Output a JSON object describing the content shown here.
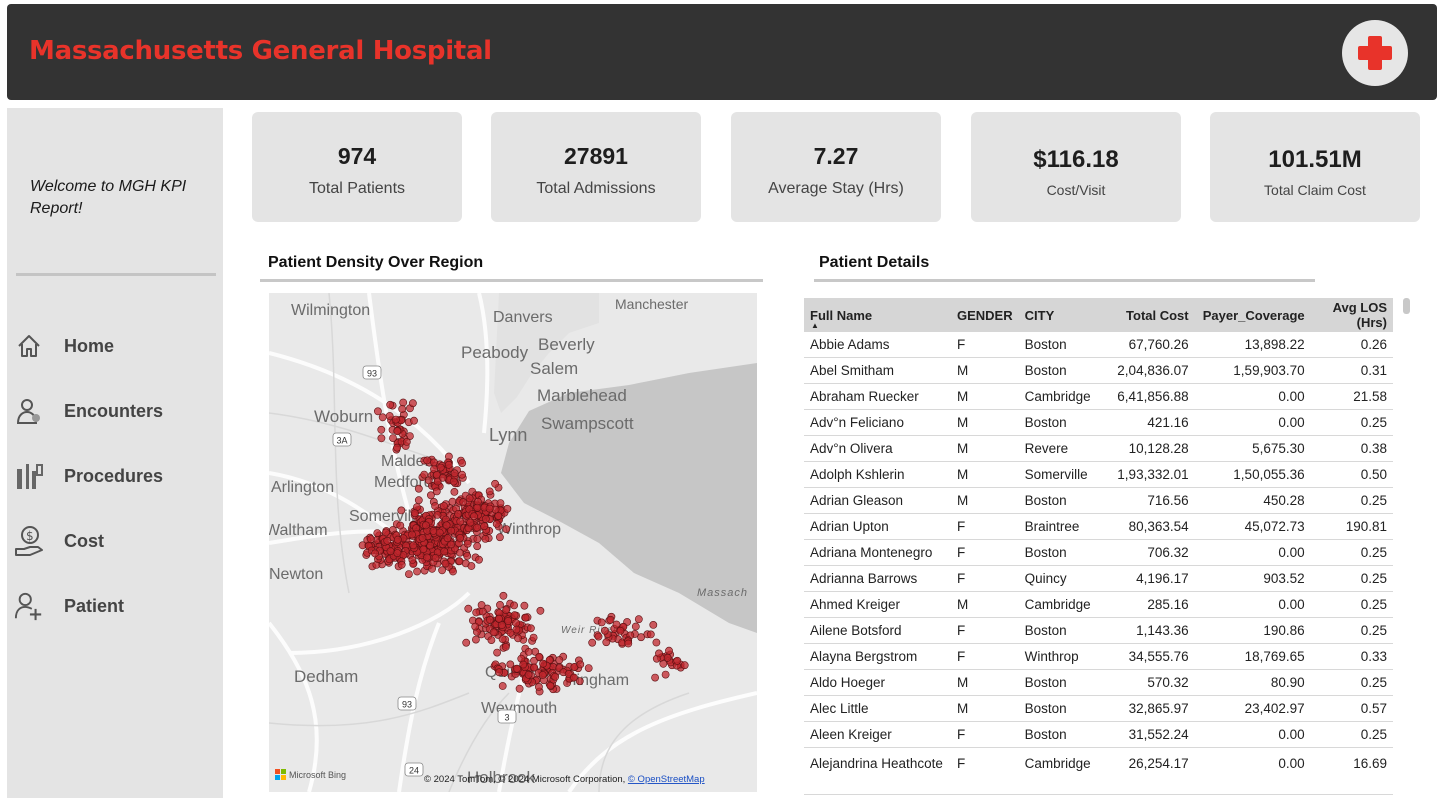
{
  "header": {
    "title": "Massachusetts General Hospital"
  },
  "sidebar": {
    "welcome": "Welcome to MGH KPI Report!",
    "nav": [
      {
        "label": "Home",
        "icon": "home-icon"
      },
      {
        "label": "Encounters",
        "icon": "doctor-icon"
      },
      {
        "label": "Procedures",
        "icon": "tools-icon"
      },
      {
        "label": "Cost",
        "icon": "money-hand-icon"
      },
      {
        "label": "Patient",
        "icon": "add-user-icon"
      }
    ]
  },
  "kpis": [
    {
      "value": "974",
      "label": "Total Patients"
    },
    {
      "value": "27891",
      "label": "Total Admissions"
    },
    {
      "value": "7.27",
      "label": "Average Stay (Hrs)"
    },
    {
      "value": "$116.18",
      "label": "Cost/Visit"
    },
    {
      "value": "101.51M",
      "label": "Total Claim Cost"
    }
  ],
  "map": {
    "title": "Patient Density Over Region",
    "place_labels": [
      "Wilmington",
      "Danvers",
      "Manchester",
      "Peabody",
      "Beverly",
      "Salem",
      "Marblehead",
      "Woburn",
      "Lynn",
      "Swampscott",
      "Malden",
      "Arlington",
      "Medford",
      "Somerville",
      "Waltham",
      "Newton",
      "Winthrop",
      "Dedham",
      "Quincy",
      "Weymouth",
      "Hingham",
      "Holbrook",
      "Weir River",
      "Massach"
    ],
    "road_labels": [
      "93",
      "3A",
      "93",
      "3",
      "24"
    ],
    "bing_label": "Microsoft Bing",
    "credits": "© 2024 TomTom, © 2024 Microsoft Corporation, ",
    "osm_link": "© OpenStreetMap",
    "marker_color": "#c0272d"
  },
  "table": {
    "title": "Patient Details",
    "columns": [
      "Full Name",
      "GENDER",
      "CITY",
      "Total Cost",
      "Payer_Coverage",
      "Avg LOS (Hrs)"
    ],
    "rows": [
      [
        "Abbie Adams",
        "F",
        "Boston",
        "67,760.26",
        "13,898.22",
        "0.26"
      ],
      [
        "Abel Smitham",
        "M",
        "Boston",
        "2,04,836.07",
        "1,59,903.70",
        "0.31"
      ],
      [
        "Abraham Ruecker",
        "M",
        "Cambridge",
        "6,41,856.88",
        "0.00",
        "21.58"
      ],
      [
        "Adv°n Feliciano",
        "M",
        "Boston",
        "421.16",
        "0.00",
        "0.25"
      ],
      [
        "Adv°n Olivera",
        "M",
        "Revere",
        "10,128.28",
        "5,675.30",
        "0.38"
      ],
      [
        "Adolph Kshlerin",
        "M",
        "Somerville",
        "1,93,332.01",
        "1,50,055.36",
        "0.50"
      ],
      [
        "Adrian Gleason",
        "M",
        "Boston",
        "716.56",
        "450.28",
        "0.25"
      ],
      [
        "Adrian Upton",
        "F",
        "Braintree",
        "80,363.54",
        "45,072.73",
        "190.81"
      ],
      [
        "Adriana Montenegro",
        "F",
        "Boston",
        "706.32",
        "0.00",
        "0.25"
      ],
      [
        "Adrianna Barrows",
        "F",
        "Quincy",
        "4,196.17",
        "903.52",
        "0.25"
      ],
      [
        "Ahmed Kreiger",
        "M",
        "Cambridge",
        "285.16",
        "0.00",
        "0.25"
      ],
      [
        "Ailene Botsford",
        "F",
        "Boston",
        "1,143.36",
        "190.86",
        "0.25"
      ],
      [
        "Alayna Bergstrom",
        "F",
        "Winthrop",
        "34,555.76",
        "18,769.65",
        "0.33"
      ],
      [
        "Aldo Hoeger",
        "M",
        "Boston",
        "570.32",
        "80.90",
        "0.25"
      ],
      [
        "Alec Little",
        "M",
        "Boston",
        "32,865.97",
        "23,402.97",
        "0.57"
      ],
      [
        "Aleen Kreiger",
        "F",
        "Boston",
        "31,552.24",
        "0.00",
        "0.25"
      ],
      [
        "Alejandrina Heathcote",
        "F",
        "Cambridge",
        "26,254.17",
        "0.00",
        "16.69"
      ]
    ]
  }
}
